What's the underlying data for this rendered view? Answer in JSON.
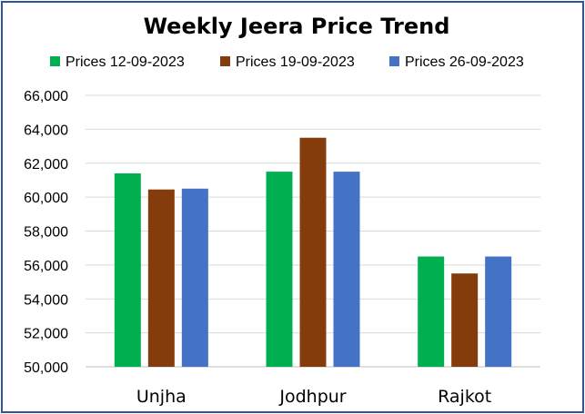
{
  "chart_data": {
    "type": "bar",
    "title": "Weekly Jeera Price Trend",
    "xlabel": "",
    "ylabel": "",
    "categories": [
      "Unjha",
      "Jodhpur",
      "Rajkot"
    ],
    "series": [
      {
        "name": "Prices 12-09-2023",
        "values": [
          61400,
          61500,
          56500
        ],
        "color": "#00b050"
      },
      {
        "name": "Prices 19-09-2023",
        "values": [
          60450,
          63500,
          55500
        ],
        "color": "#843c0c"
      },
      {
        "name": "Prices 26-09-2023",
        "values": [
          60500,
          61500,
          56500
        ],
        "color": "#4472c4"
      }
    ],
    "ylim": [
      50000,
      66000
    ],
    "yticks": [
      "50,000",
      "52,000",
      "54,000",
      "56,000",
      "58,000",
      "60,000",
      "62,000",
      "64,000",
      "66,000"
    ],
    "grid": true,
    "legend_position": "top"
  }
}
